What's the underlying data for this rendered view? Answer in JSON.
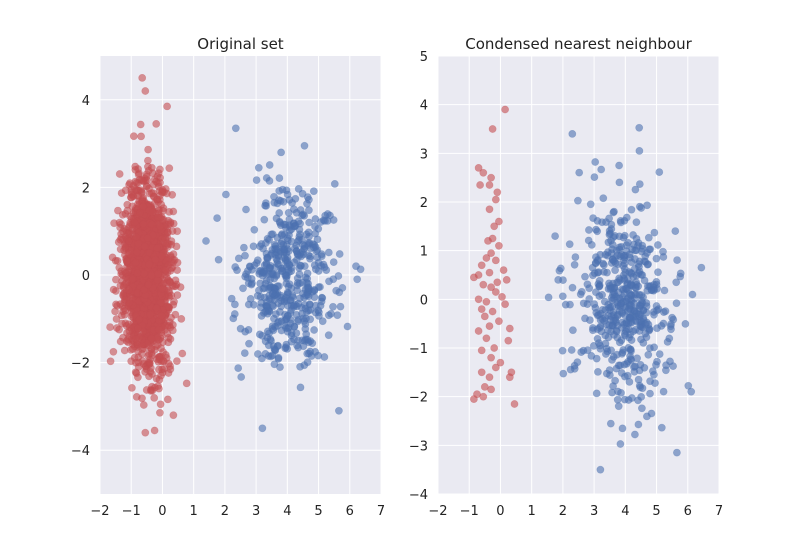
{
  "figure": {
    "background": "#ffffff",
    "axes_face": "#eaeaf2",
    "grid_color": "#ffffff"
  },
  "chart_data": [
    {
      "type": "scatter",
      "title": "Original set",
      "xlabel": "",
      "ylabel": "",
      "xlim": [
        -2,
        7
      ],
      "ylim": [
        -5,
        5
      ],
      "x_ticks": [
        -2,
        -1,
        0,
        1,
        2,
        3,
        4,
        5,
        6,
        7
      ],
      "x_tick_labels": [
        "−2",
        "−1",
        "0",
        "1",
        "2",
        "3",
        "4",
        "5",
        "6",
        "7"
      ],
      "y_ticks": [
        -4,
        -2,
        0,
        2,
        4
      ],
      "y_tick_labels": [
        "−4",
        "−2",
        "0",
        "2",
        "4"
      ],
      "grid": true,
      "legend": "none",
      "series": [
        {
          "color": "#c44e52",
          "alpha": 0.6,
          "count": 1800,
          "distribution": {
            "x_mean": -0.5,
            "x_std": 0.38,
            "y_mean": 0.0,
            "y_std": 1.0
          },
          "notable_points": [
            [
              -0.65,
              4.5
            ],
            [
              -0.55,
              4.2
            ],
            [
              0.15,
              3.85
            ],
            [
              -0.2,
              3.45
            ],
            [
              -0.55,
              -3.6
            ],
            [
              -0.25,
              -3.55
            ],
            [
              0.35,
              -3.2
            ]
          ]
        },
        {
          "color": "#4c72b0",
          "alpha": 0.6,
          "count": 500,
          "distribution": {
            "x_mean": 3.95,
            "x_std": 0.75,
            "y_mean": 0.0,
            "y_std": 1.0
          },
          "notable_points": [
            [
              2.35,
              3.35
            ],
            [
              4.55,
              2.95
            ],
            [
              3.8,
              2.8
            ],
            [
              3.2,
              -3.5
            ],
            [
              5.65,
              -3.1
            ],
            [
              6.2,
              0.2
            ],
            [
              1.75,
              1.3
            ],
            [
              1.8,
              0.35
            ]
          ]
        }
      ]
    },
    {
      "type": "scatter",
      "title": "Condensed nearest neighbour",
      "xlabel": "",
      "ylabel": "",
      "xlim": [
        -2,
        7
      ],
      "ylim": [
        -4,
        5
      ],
      "x_ticks": [
        -2,
        -1,
        0,
        1,
        2,
        3,
        4,
        5,
        6,
        7
      ],
      "x_tick_labels": [
        "−2",
        "−1",
        "0",
        "1",
        "2",
        "3",
        "4",
        "5",
        "6",
        "7"
      ],
      "y_ticks": [
        -4,
        -3,
        -2,
        -1,
        0,
        1,
        2,
        3,
        4,
        5
      ],
      "y_tick_labels": [
        "−4",
        "−3",
        "−2",
        "−1",
        "0",
        "1",
        "2",
        "3",
        "4",
        "5"
      ],
      "grid": true,
      "legend": "none",
      "series": [
        {
          "color": "#c44e52",
          "alpha": 0.6,
          "points": [
            [
              0.15,
              3.9
            ],
            [
              -0.25,
              3.5
            ],
            [
              -0.7,
              2.7
            ],
            [
              -0.55,
              2.6
            ],
            [
              -0.3,
              2.5
            ],
            [
              -0.65,
              2.35
            ],
            [
              -0.35,
              2.35
            ],
            [
              -0.1,
              2.2
            ],
            [
              -0.15,
              2.05
            ],
            [
              -0.35,
              1.85
            ],
            [
              -0.05,
              1.6
            ],
            [
              -0.2,
              1.5
            ],
            [
              -0.25,
              1.25
            ],
            [
              -0.4,
              1.2
            ],
            [
              -0.05,
              1.1
            ],
            [
              -0.3,
              0.95
            ],
            [
              -0.45,
              0.85
            ],
            [
              -0.15,
              0.8
            ],
            [
              -0.6,
              0.7
            ],
            [
              0.1,
              0.6
            ],
            [
              -0.35,
              0.55
            ],
            [
              -0.7,
              0.5
            ],
            [
              -0.85,
              0.45
            ],
            [
              0.2,
              0.4
            ],
            [
              -0.1,
              0.35
            ],
            [
              -0.55,
              0.3
            ],
            [
              -0.3,
              0.25
            ],
            [
              -0.15,
              0.15
            ],
            [
              0.05,
              0.05
            ],
            [
              -0.7,
              0.0
            ],
            [
              -0.45,
              -0.05
            ],
            [
              0.15,
              -0.1
            ],
            [
              -0.6,
              -0.2
            ],
            [
              -0.25,
              -0.25
            ],
            [
              -0.5,
              -0.35
            ],
            [
              -0.05,
              -0.45
            ],
            [
              -0.35,
              -0.55
            ],
            [
              0.3,
              -0.6
            ],
            [
              -0.7,
              -0.65
            ],
            [
              -0.45,
              -0.8
            ],
            [
              0.25,
              -0.85
            ],
            [
              -0.2,
              -1.0
            ],
            [
              -0.6,
              -1.05
            ],
            [
              -0.3,
              -1.2
            ],
            [
              0.0,
              -1.3
            ],
            [
              -0.15,
              -1.4
            ],
            [
              0.35,
              -1.5
            ],
            [
              -0.6,
              -1.5
            ],
            [
              -0.35,
              -1.6
            ],
            [
              0.3,
              -1.6
            ],
            [
              -0.5,
              -1.8
            ],
            [
              -0.3,
              -1.85
            ],
            [
              -0.75,
              -1.95
            ],
            [
              -0.55,
              -2.0
            ],
            [
              -0.85,
              -2.05
            ],
            [
              0.45,
              -2.15
            ]
          ]
        },
        {
          "color": "#4c72b0",
          "alpha": 0.6,
          "count": 500,
          "distribution": {
            "x_mean": 3.95,
            "x_std": 0.75,
            "y_mean": 0.0,
            "y_std": 1.0
          },
          "notable_points": [
            [
              2.3,
              3.4
            ],
            [
              4.45,
              3.05
            ],
            [
              3.8,
              2.75
            ],
            [
              3.2,
              -3.5
            ],
            [
              5.65,
              -3.15
            ],
            [
              6.15,
              0.1
            ],
            [
              1.75,
              1.3
            ],
            [
              1.85,
              0.4
            ]
          ]
        }
      ]
    }
  ]
}
